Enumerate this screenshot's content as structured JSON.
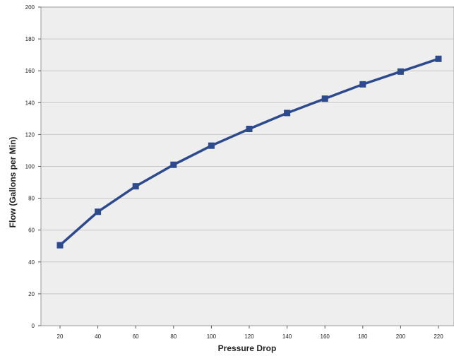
{
  "chart_data": {
    "type": "line",
    "title": "",
    "xlabel": "Pressure Drop",
    "ylabel": "Flow (Gallons per Min)",
    "x": [
      20,
      40,
      60,
      80,
      100,
      120,
      140,
      160,
      180,
      200,
      220
    ],
    "x_tick_labels": [
      "20",
      "40",
      "60",
      "80",
      "100",
      "120",
      "140",
      "160",
      "180",
      "200",
      "220"
    ],
    "y_tick_labels": [
      "0",
      "20",
      "40",
      "60",
      "80",
      "100",
      "120",
      "140",
      "160",
      "180",
      "200"
    ],
    "ylim": [
      0,
      200
    ],
    "grid": "horizontal",
    "series": [
      {
        "values": [
          50.5,
          71.5,
          87.5,
          101,
          113,
          123.5,
          133.5,
          142.5,
          151.5,
          159.5,
          167.5
        ],
        "color": "#2c4a8c",
        "marker": "square"
      }
    ]
  },
  "colors": {
    "plot_background": "#eeeeee",
    "gridline": "#c8c8c8",
    "series": "#2c4a8c"
  }
}
